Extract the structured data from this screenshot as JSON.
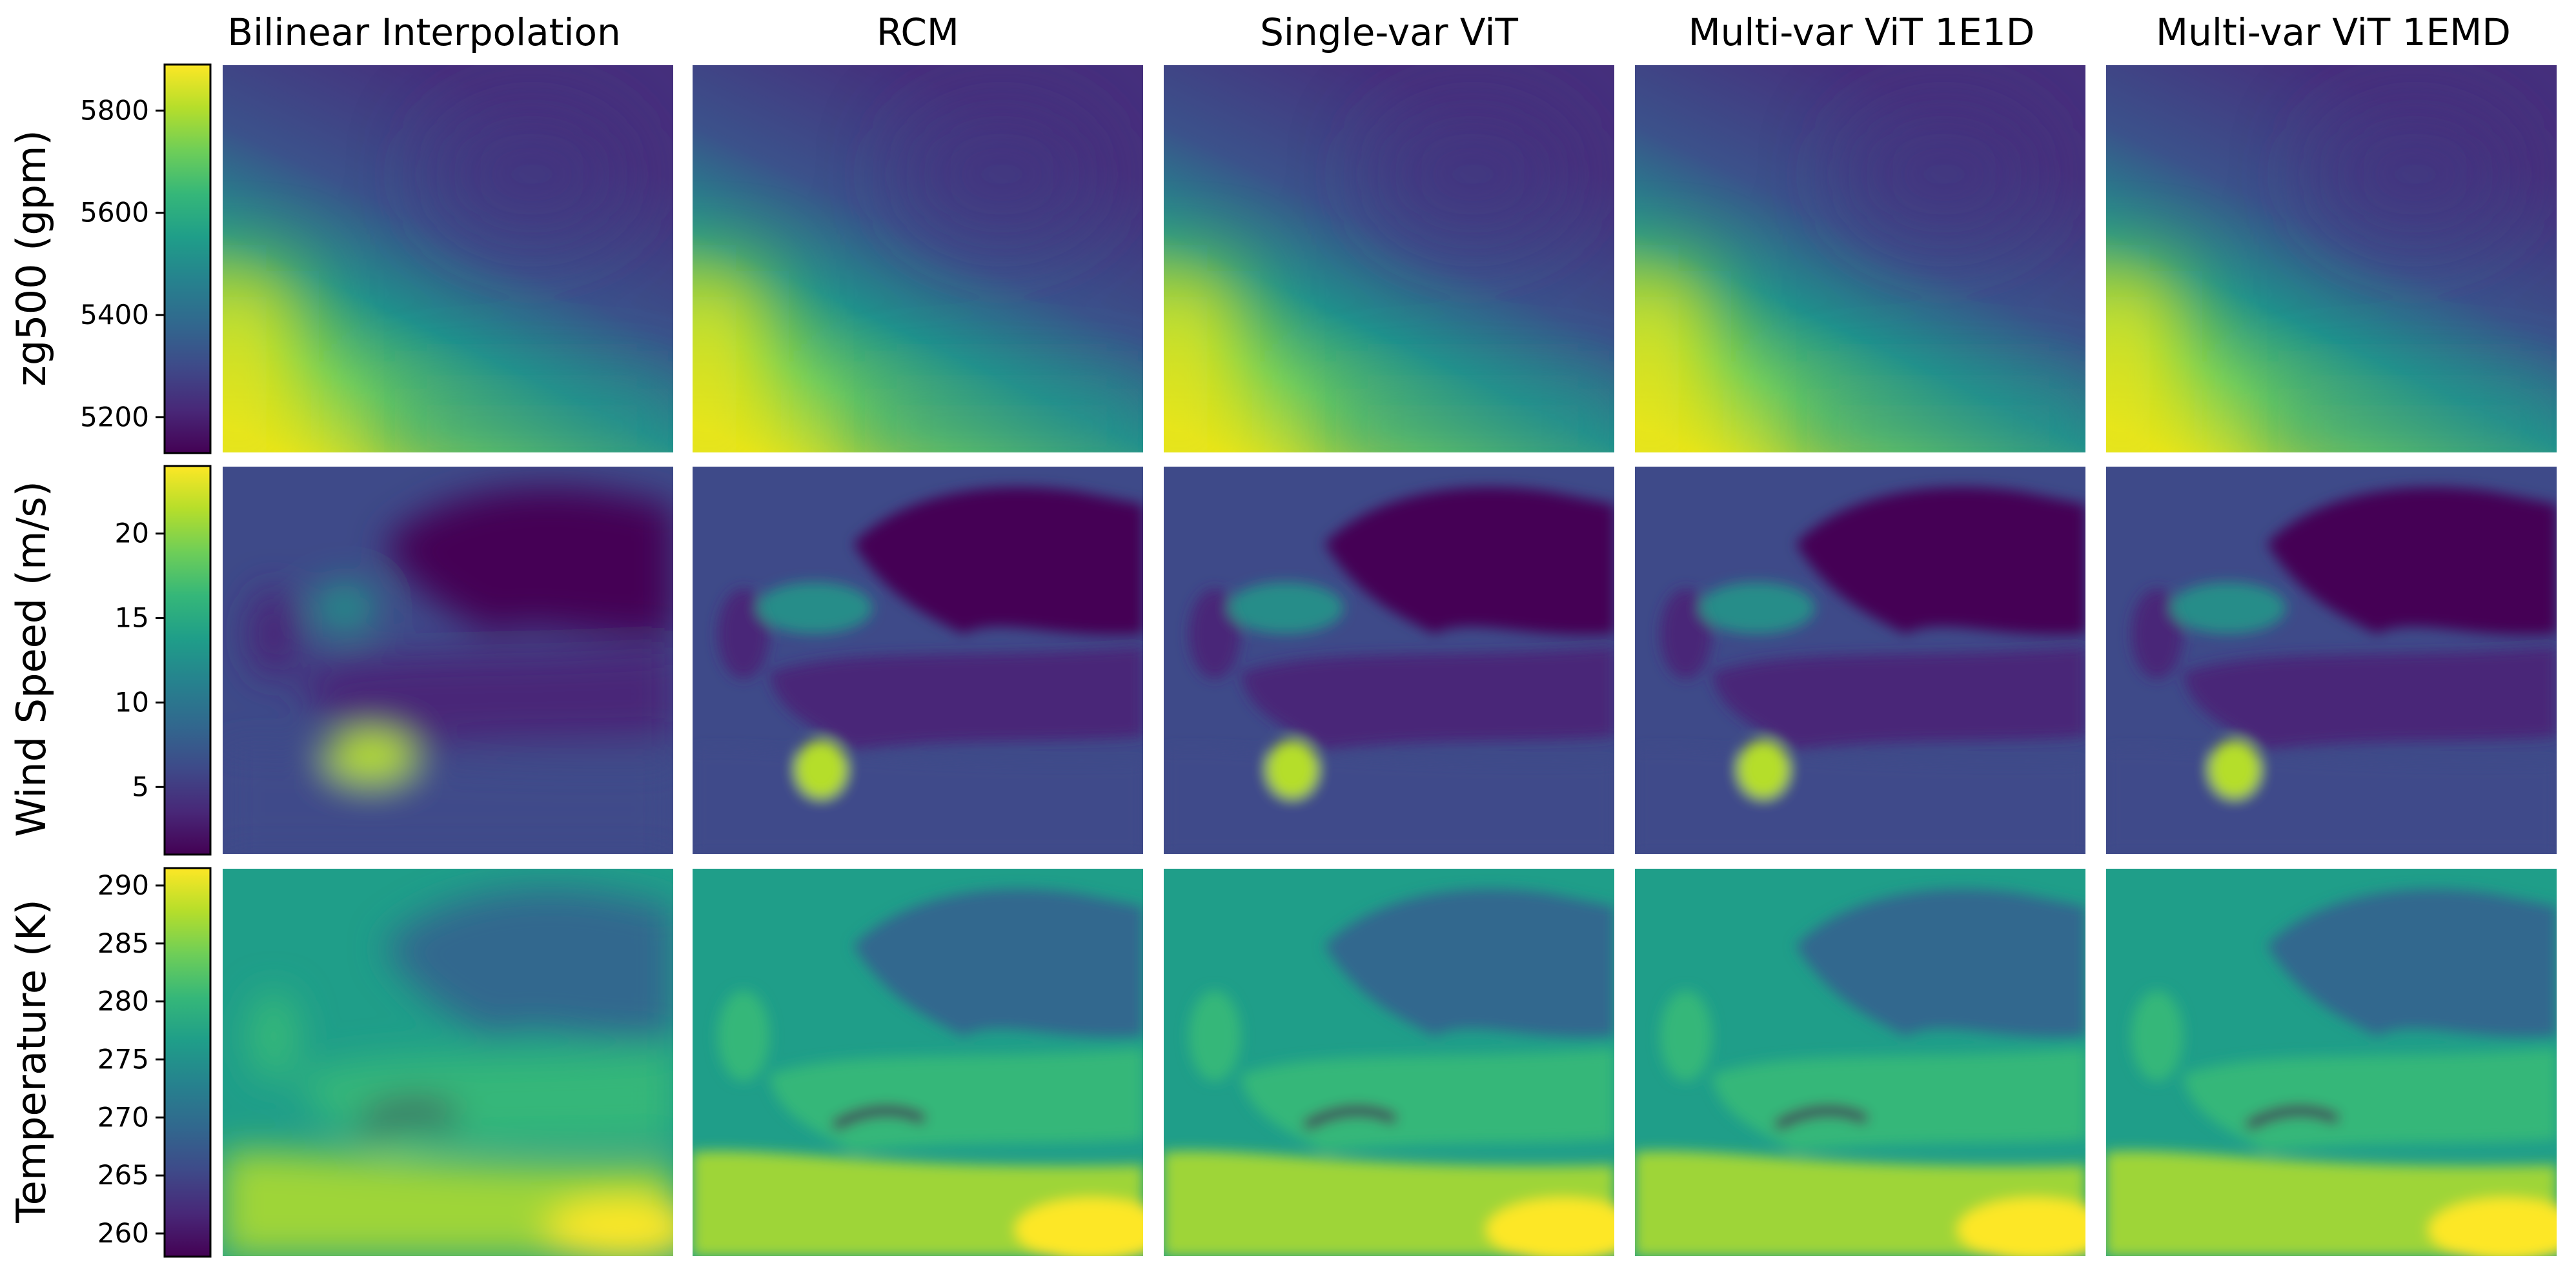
{
  "chart_data": {
    "type": "heatmap",
    "colormap": "viridis",
    "colormap_stops": [
      "#440154",
      "#482878",
      "#3e4a89",
      "#31688e",
      "#26828e",
      "#1f9e89",
      "#35b779",
      "#6ece58",
      "#b5de2b",
      "#fde725"
    ],
    "columns": [
      "Bilinear Interpolation",
      "RCM",
      "Single-var ViT",
      "Multi-var ViT 1E1D",
      "Multi-var ViT 1EMD"
    ],
    "rows": [
      {
        "label": "zg500 (gpm)",
        "colorbar_range": [
          5130,
          5890
        ],
        "ticks": [
          5200,
          5400,
          5600,
          5800
        ],
        "tick_labels": [
          "5200",
          "5400",
          "5600",
          "5800"
        ],
        "pattern": "smooth-gradient",
        "description": "low values in north, high values in south-west"
      },
      {
        "label": "Wind Speed (m/s)",
        "colorbar_range": [
          1,
          24
        ],
        "ticks": [
          5,
          10,
          15,
          20
        ],
        "tick_labels": [
          "5",
          "10",
          "15",
          "20"
        ],
        "pattern": "europe-map",
        "description": "higher speeds over ocean and western Mediterranean"
      },
      {
        "label": "Temperature (K)",
        "colorbar_range": [
          258,
          291.5
        ],
        "ticks": [
          260,
          265,
          270,
          275,
          280,
          285,
          290
        ],
        "tick_labels": [
          "260",
          "265",
          "270",
          "275",
          "280",
          "285",
          "290"
        ],
        "pattern": "europe-map",
        "description": "colder in Scandinavia and Alps, warmer in south"
      }
    ]
  }
}
